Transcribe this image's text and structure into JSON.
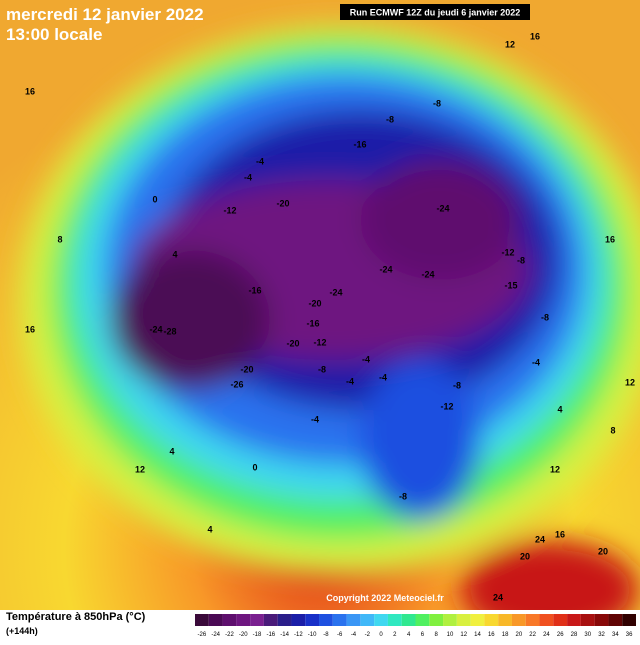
{
  "header": {
    "title": "mercredi 12 janvier 2022",
    "subtitle": "13:00 locale",
    "run": "Run ECMWF 12Z du jeudi 6 janvier 2022"
  },
  "map": {
    "labels": [
      "12",
      "16",
      "16",
      "-8",
      "-8",
      "-16",
      "-4",
      "-4",
      "-12",
      "-20",
      "-24",
      "-24",
      "-24",
      "-24",
      "-16",
      "-20",
      "-16",
      "-24",
      "-28",
      "-20",
      "-12",
      "-8",
      "-20",
      "-26",
      "-4",
      "-4",
      "-4",
      "-8",
      "-12",
      "-4",
      "-12",
      "-8",
      "-15",
      "-8",
      "4",
      "0",
      "8",
      "12",
      "12",
      "16",
      "20",
      "24",
      "16",
      "20",
      "24",
      "4",
      "4",
      "0",
      "-8",
      "-4",
      "4",
      "8",
      "12",
      "16"
    ]
  },
  "footer": {
    "copyright": "Copyright 2022 Meteociel.fr",
    "legend_title": "Température à 850hPa (°C)",
    "lead": "(+144h)"
  },
  "colorbar": {
    "ticks": [
      -26,
      -24,
      -22,
      -20,
      -18,
      -16,
      -14,
      -12,
      -10,
      -8,
      -6,
      -4,
      -2,
      0,
      2,
      4,
      6,
      8,
      10,
      12,
      14,
      16,
      18,
      20,
      22,
      24,
      26,
      28,
      30,
      32,
      34,
      36
    ],
    "colors": [
      "#3a0a3a",
      "#4b0a55",
      "#5e0f6e",
      "#6e1680",
      "#7a2090",
      "#4a1a7a",
      "#2a1e8a",
      "#1a1ea8",
      "#1830c8",
      "#1e50e0",
      "#2a72ee",
      "#3a96f5",
      "#40b8f8",
      "#40d8f0",
      "#30e8c0",
      "#30e890",
      "#50f060",
      "#80f040",
      "#b0f040",
      "#d8f040",
      "#f0f040",
      "#f8d830",
      "#f8b828",
      "#f89828",
      "#f87828",
      "#f05020",
      "#e03018",
      "#c81818",
      "#a81010",
      "#880808",
      "#600404",
      "#300000"
    ]
  }
}
